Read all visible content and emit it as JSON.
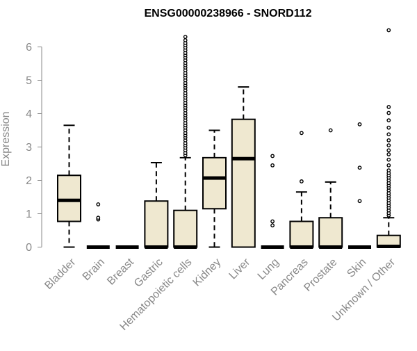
{
  "chart_data": {
    "type": "box",
    "title": "ENSG00000238966 - SNORD112",
    "xlabel": "",
    "ylabel": "Expression",
    "ylim": [
      0,
      6.6
    ],
    "yticks": [
      0,
      1,
      2,
      3,
      4,
      5,
      6
    ],
    "grid": false,
    "legend": "none",
    "box_fill": "#efe8d0",
    "stroke": "#000000",
    "categories": [
      "Bladder",
      "Brain",
      "Breast",
      "Gastric",
      "Hematopoietic cells",
      "Kidney",
      "Liver",
      "Lung",
      "Pancreas",
      "Prostate",
      "Skin",
      "Unknown / Other"
    ],
    "boxes": [
      {
        "category": "Bladder",
        "q1": 0.77,
        "median": 1.4,
        "q3": 2.15,
        "whisker_low": 0,
        "whisker_high": 3.65,
        "outliers": []
      },
      {
        "category": "Brain",
        "q1": 0,
        "median": 0,
        "q3": 0,
        "whisker_low": 0,
        "whisker_high": 0,
        "outliers": [
          0.83,
          0.88,
          1.28
        ]
      },
      {
        "category": "Breast",
        "q1": 0,
        "median": 0,
        "q3": 0,
        "whisker_low": 0,
        "whisker_high": 0,
        "outliers": []
      },
      {
        "category": "Gastric",
        "q1": 0,
        "median": 0,
        "q3": 1.38,
        "whisker_low": 0,
        "whisker_high": 2.53,
        "outliers": []
      },
      {
        "category": "Hematopoietic cells",
        "q1": 0,
        "median": 0,
        "q3": 1.1,
        "whisker_low": 0,
        "whisker_high": 2.68,
        "outliers": [
          2.75,
          2.82,
          2.9,
          2.98,
          3.05,
          3.12,
          3.2,
          3.28,
          3.35,
          3.42,
          3.5,
          3.58,
          3.65,
          3.72,
          3.8,
          3.88,
          3.95,
          4.02,
          4.1,
          4.18,
          4.25,
          4.32,
          4.4,
          4.48,
          4.55,
          4.62,
          4.7,
          4.78,
          4.85,
          4.92,
          5.0,
          5.08,
          5.15,
          5.22,
          5.3,
          5.38,
          5.45,
          5.52,
          5.6,
          5.68,
          5.75,
          5.82,
          5.9,
          5.98,
          6.05,
          6.12,
          6.2,
          6.3
        ]
      },
      {
        "category": "Kidney",
        "q1": 1.15,
        "median": 2.07,
        "q3": 2.68,
        "whisker_low": 0,
        "whisker_high": 3.5,
        "outliers": []
      },
      {
        "category": "Liver",
        "q1": 0,
        "median": 2.65,
        "q3": 3.83,
        "whisker_low": 0,
        "whisker_high": 4.8,
        "outliers": []
      },
      {
        "category": "Lung",
        "q1": 0,
        "median": 0,
        "q3": 0,
        "whisker_low": 0,
        "whisker_high": 0,
        "outliers": [
          0.65,
          0.77,
          2.45,
          2.73
        ]
      },
      {
        "category": "Pancreas",
        "q1": 0,
        "median": 0,
        "q3": 0.77,
        "whisker_low": 0,
        "whisker_high": 1.65,
        "outliers": [
          1.97,
          3.42
        ]
      },
      {
        "category": "Prostate",
        "q1": 0,
        "median": 0,
        "q3": 0.88,
        "whisker_low": 0,
        "whisker_high": 1.95,
        "outliers": [
          3.5
        ]
      },
      {
        "category": "Skin",
        "q1": 0,
        "median": 0,
        "q3": 0,
        "whisker_low": 0,
        "whisker_high": 0,
        "outliers": [
          1.38,
          2.38,
          3.68
        ]
      },
      {
        "category": "Unknown / Other",
        "q1": 0,
        "median": 0.02,
        "q3": 0.35,
        "whisker_low": 0,
        "whisker_high": 0.88,
        "outliers": [
          0.95,
          1.02,
          1.1,
          1.18,
          1.25,
          1.32,
          1.4,
          1.48,
          1.55,
          1.62,
          1.7,
          1.78,
          1.85,
          1.92,
          2.0,
          2.08,
          2.15,
          2.22,
          2.3,
          2.45,
          2.62,
          2.78,
          2.9,
          3.05,
          3.2,
          3.38,
          3.58,
          3.8,
          4.02,
          4.2,
          6.5
        ]
      }
    ]
  }
}
